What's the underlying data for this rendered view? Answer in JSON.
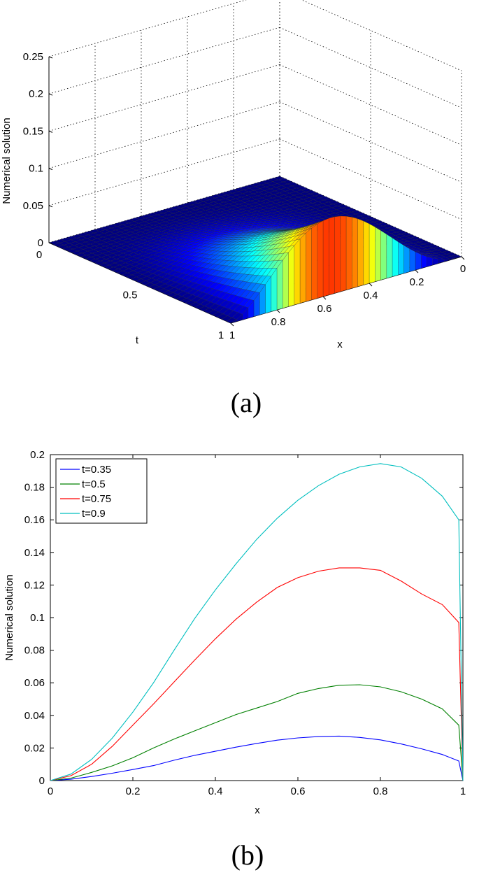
{
  "chart_data": [
    {
      "type": "surface",
      "caption": "(a)",
      "zlabel": "Numerical solution",
      "xlabel": "x",
      "ylabel": "t",
      "zticks": [
        "0",
        "0.05",
        "0.1",
        "0.15",
        "0.2",
        "0.25"
      ],
      "xticks": [
        "0",
        "0.2",
        "0.4",
        "0.6",
        "0.8",
        "1"
      ],
      "tticks": [
        "0",
        "0.5",
        "1"
      ],
      "xlim": [
        0,
        1
      ],
      "tlim": [
        0,
        1
      ],
      "zlim": [
        0,
        0.25
      ],
      "grid": true,
      "colormap": "jet"
    },
    {
      "type": "line",
      "caption": "(b)",
      "xlabel": "x",
      "ylabel": "Numerical solution",
      "xlim": [
        0,
        1
      ],
      "ylim": [
        0,
        0.2
      ],
      "xticks": [
        "0",
        "0.2",
        "0.4",
        "0.6",
        "0.8",
        "1"
      ],
      "yticks": [
        "0",
        "0.02",
        "0.04",
        "0.06",
        "0.08",
        "0.1",
        "0.12",
        "0.14",
        "0.16",
        "0.18",
        "0.2"
      ],
      "legend_position": "top-left",
      "x": [
        0,
        0.05,
        0.1,
        0.15,
        0.2,
        0.25,
        0.3,
        0.35,
        0.4,
        0.45,
        0.5,
        0.55,
        0.6,
        0.65,
        0.7,
        0.75,
        0.8,
        0.85,
        0.9,
        0.95,
        0.99,
        1
      ],
      "series": [
        {
          "name": "t=0.35",
          "color": "#0000ff",
          "values": [
            0,
            0.0008,
            0.0025,
            0.0045,
            0.0068,
            0.0092,
            0.0125,
            0.0155,
            0.018,
            0.0205,
            0.0228,
            0.0248,
            0.0262,
            0.027,
            0.0273,
            0.0265,
            0.025,
            0.0225,
            0.0195,
            0.016,
            0.012,
            0
          ]
        },
        {
          "name": "t=0.5",
          "color": "#008000",
          "values": [
            0,
            0.0015,
            0.005,
            0.009,
            0.014,
            0.02,
            0.0255,
            0.0305,
            0.0355,
            0.0405,
            0.0445,
            0.0485,
            0.0535,
            0.0565,
            0.0585,
            0.0588,
            0.0575,
            0.0545,
            0.05,
            0.044,
            0.034,
            0
          ]
        },
        {
          "name": "t=0.75",
          "color": "#ff0000",
          "values": [
            0,
            0.003,
            0.01,
            0.021,
            0.034,
            0.047,
            0.0605,
            0.074,
            0.087,
            0.099,
            0.1095,
            0.1185,
            0.1245,
            0.1285,
            0.1305,
            0.1305,
            0.129,
            0.1225,
            0.1145,
            0.108,
            0.097,
            0
          ]
        },
        {
          "name": "t=0.9",
          "color": "#00bfbf",
          "values": [
            0,
            0.004,
            0.013,
            0.026,
            0.042,
            0.06,
            0.08,
            0.0995,
            0.117,
            0.133,
            0.148,
            0.161,
            0.172,
            0.181,
            0.188,
            0.1925,
            0.1945,
            0.1925,
            0.1855,
            0.1745,
            0.16,
            0
          ]
        }
      ]
    }
  ]
}
